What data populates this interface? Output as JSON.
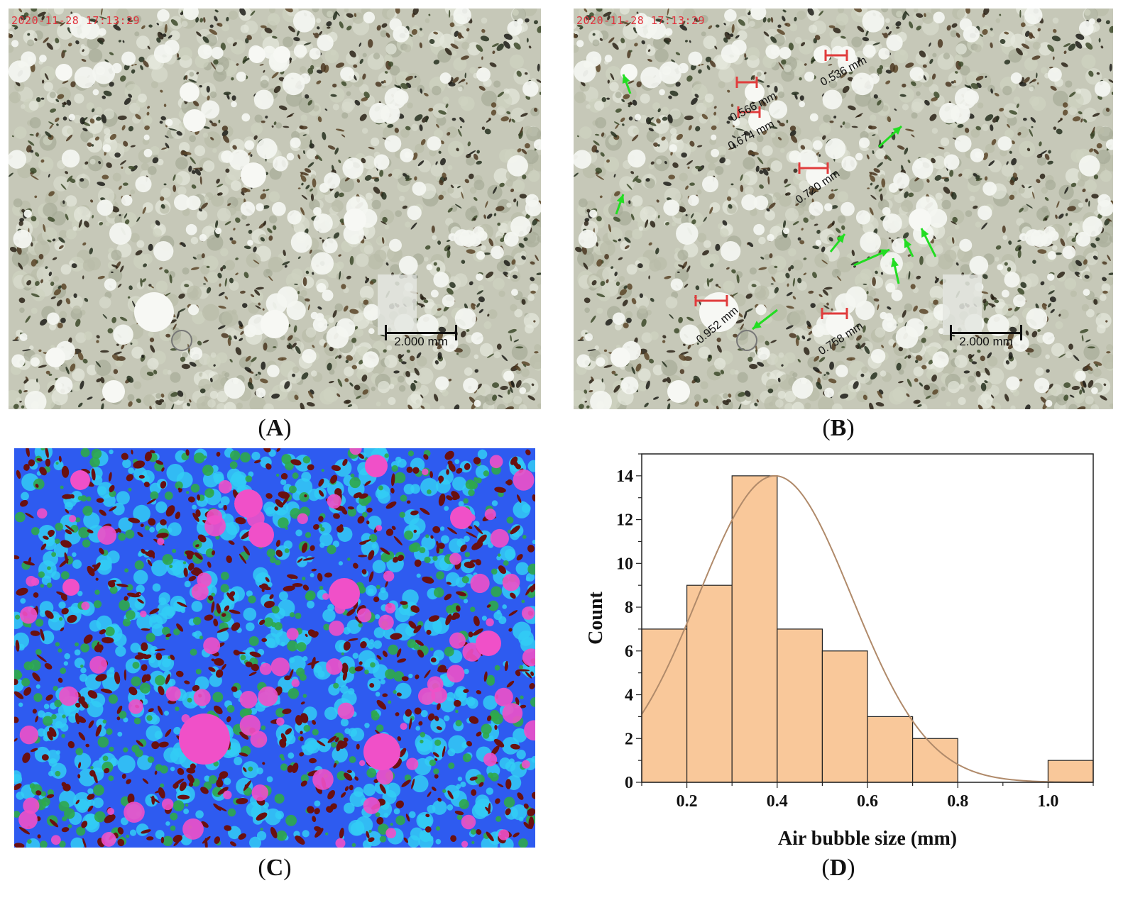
{
  "panels": {
    "A": {
      "caption_letter": "A",
      "timestamp": "2020-11-28 17:13:29",
      "scale_label": "2.000 mm"
    },
    "B": {
      "caption_letter": "B",
      "timestamp": "2020-11-28 17:13:29",
      "scale_label": "2.000 mm",
      "measurements": [
        "0.566 mm",
        "0.674 mm",
        "0.536 mm",
        "0.720 mm",
        "0.952 mm",
        "0.758 mm"
      ]
    },
    "C": {
      "caption_letter": "C"
    },
    "D": {
      "caption_letter": "D"
    }
  },
  "colors": {
    "timestamp": "#e0323c",
    "measure_marker": "#e03c3c",
    "arrow": "#22dd22",
    "bar_fill": "#f9c89a",
    "fit_curve": "#b08a6a",
    "heat_base": "#2e5bf0",
    "heat_cyan": "#33ccf5",
    "heat_magenta": "#f050c8",
    "heat_dark": "#6a1010",
    "heat_green": "#2fa84a"
  },
  "chart_data": {
    "type": "bar",
    "subtype": "histogram_with_normal_fit",
    "xlabel": "Air bubble size (mm)",
    "ylabel": "Count",
    "xlim": [
      0.1,
      1.1
    ],
    "ylim": [
      0,
      15
    ],
    "x_ticks": [
      "0.2",
      "0.4",
      "0.6",
      "0.8",
      "1.0"
    ],
    "y_ticks": [
      "0",
      "2",
      "4",
      "6",
      "8",
      "10",
      "12",
      "14"
    ],
    "bins": [
      {
        "from": 0.1,
        "to": 0.2,
        "count": 7
      },
      {
        "from": 0.2,
        "to": 0.3,
        "count": 9
      },
      {
        "from": 0.3,
        "to": 0.4,
        "count": 14
      },
      {
        "from": 0.4,
        "to": 0.5,
        "count": 7
      },
      {
        "from": 0.5,
        "to": 0.6,
        "count": 6
      },
      {
        "from": 0.6,
        "to": 0.7,
        "count": 3
      },
      {
        "from": 0.7,
        "to": 0.8,
        "count": 2
      },
      {
        "from": 0.8,
        "to": 0.9,
        "count": 0
      },
      {
        "from": 0.9,
        "to": 1.0,
        "count": 0
      },
      {
        "from": 1.0,
        "to": 1.1,
        "count": 1
      }
    ],
    "fit": {
      "type": "normal",
      "mean": 0.395,
      "sd": 0.17,
      "peak": 14
    },
    "grid": false,
    "legend": "none"
  }
}
